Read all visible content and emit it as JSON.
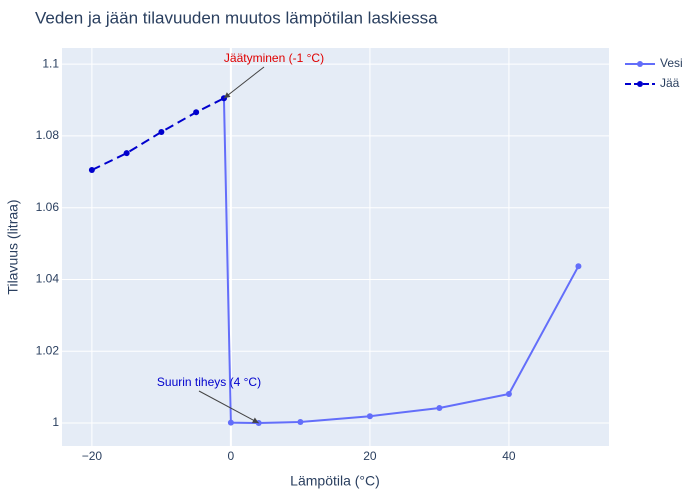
{
  "chart_data": {
    "type": "line",
    "title": "Veden ja jään tilavuuden muutos lämpötilan laskiessa",
    "x_label": "Lämpötila (°C)",
    "y_label": "Tilavuus (litraa)",
    "series": [
      {
        "name": "Vesi",
        "color": "#636efa",
        "dash": "solid",
        "x": [
          -1,
          0,
          4,
          10,
          20,
          30,
          40,
          50
        ],
        "values": [
          1.0905,
          1.0001,
          1.0,
          1.0003,
          1.0019,
          1.0042,
          1.0081,
          1.0437
        ]
      },
      {
        "name": "Jää",
        "color": "#0000cd",
        "dash": "dash",
        "x": [
          -20,
          -15,
          -10,
          -5,
          -1
        ],
        "values": [
          1.0705,
          1.0752,
          1.0811,
          1.0866,
          1.0905
        ]
      }
    ],
    "xlim": [
      -24.3,
      54.4
    ],
    "ylim": [
      0.9936,
      1.1045
    ],
    "xticks": [
      {
        "value": -20,
        "label": "−20"
      },
      0,
      20,
      40
    ],
    "yticks": [
      1,
      1.02,
      1.04,
      1.06,
      1.08,
      1.1
    ],
    "grid": true,
    "legend": "top-right",
    "annotations": [
      {
        "text": "Jäätyminen (-1 °C)",
        "x": -1,
        "y": 1.0905,
        "color": "#e00000"
      },
      {
        "text": "Suurin tiheys (4 °C)",
        "x": 4,
        "y": 1.0,
        "color": "#0000cd"
      }
    ]
  }
}
